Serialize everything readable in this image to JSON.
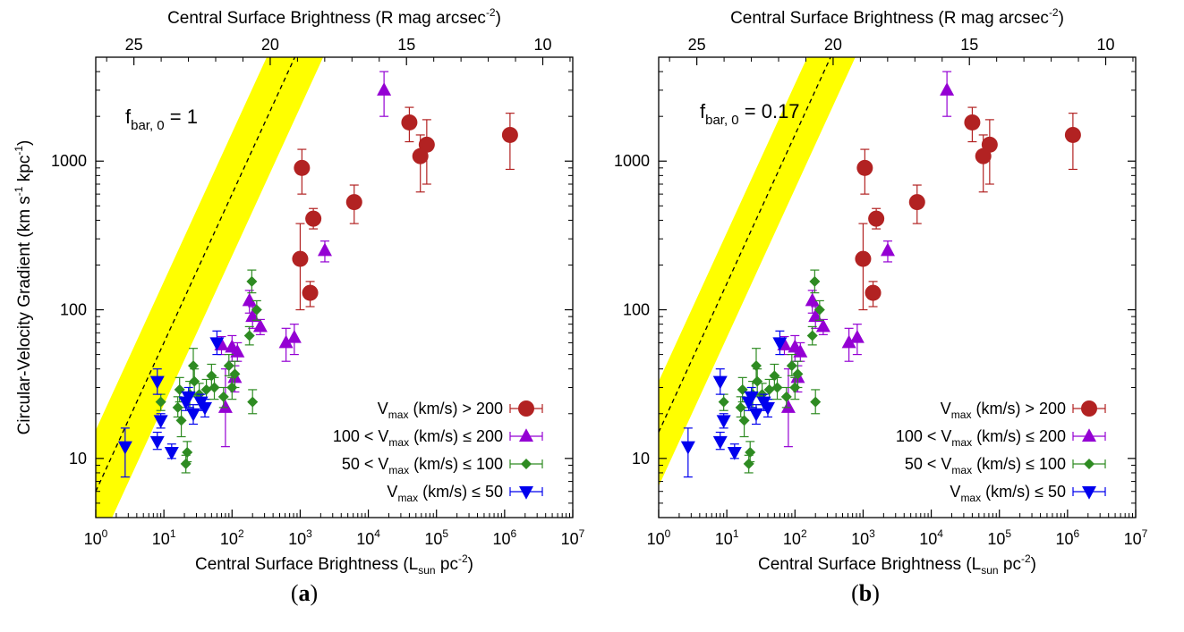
{
  "chart_data": [
    {
      "type": "scatter",
      "panel_label": "a",
      "annotation": {
        "text": "f",
        "sub": "bar, 0",
        "rest": " = 1"
      },
      "xlabel": {
        "pre": "Central Surface Brightness (L",
        "sub": "sun",
        "mid": " pc",
        "sup": "-2",
        "post": ")"
      },
      "x2label": {
        "pre": "Central Surface Brightness (R mag arcsec",
        "sup": "-2",
        "post": ")"
      },
      "ylabel": {
        "pre": "Circular-Velocity Gradient (km s",
        "sup1": "-1",
        "mid": " kpc",
        "sup2": "-1",
        "post": ")"
      },
      "xscale": "log",
      "yscale": "log",
      "xlim": [
        1,
        10000000
      ],
      "ylim": [
        4,
        5000
      ],
      "x_ticks": [
        {
          "base": "10",
          "exp": "0"
        },
        {
          "base": "10",
          "exp": "1"
        },
        {
          "base": "10",
          "exp": "2"
        },
        {
          "base": "10",
          "exp": "3"
        },
        {
          "base": "10",
          "exp": "4"
        },
        {
          "base": "10",
          "exp": "5"
        },
        {
          "base": "10",
          "exp": "6"
        },
        {
          "base": "10",
          "exp": "7"
        }
      ],
      "y_ticks": [
        "10",
        "100",
        "1000"
      ],
      "x2_ticks": [
        "25",
        "20",
        "15",
        "10"
      ],
      "band": {
        "line_at_x1": 6,
        "lower_at_x1": 2.3,
        "upper_at_x1": 15.5,
        "slope": 1.0
      },
      "legend_placement": "bottom-right",
      "series": [
        {
          "name_pre": "V",
          "name_sub": "max",
          "name_post": " (km/s) > 200",
          "marker": "circle",
          "color": "#b22222",
          "points": [
            [
              1060,
              900,
              600,
              1200
            ],
            [
              1560,
              410,
              350,
              480
            ],
            [
              1400,
              130,
              105,
              155
            ],
            [
              1000,
              220,
              100,
              380
            ],
            [
              6200,
              530,
              380,
              690
            ],
            [
              40000,
              1820,
              1350,
              2300
            ],
            [
              58000,
              1080,
              620,
              1500
            ],
            [
              72000,
              1290,
              700,
              1900
            ],
            [
              1200000,
              1500,
              880,
              2100
            ]
          ]
        },
        {
          "name_pre": "100 < V",
          "name_sub": "max",
          "name_post": " (km/s) ≤ 200",
          "marker": "triangle-up",
          "color": "#9400d3",
          "points": [
            [
              17000,
              3000,
              2000,
              4000
            ],
            [
              2300,
              250,
              210,
              290
            ],
            [
              180,
              115,
              95,
              135
            ],
            [
              200,
              90,
              75,
              105
            ],
            [
              260,
              77,
              68,
              86
            ],
            [
              620,
              60,
              45,
              75
            ],
            [
              820,
              65,
              50,
              80
            ],
            [
              70,
              58,
              50,
              66
            ],
            [
              100,
              56,
              45,
              67
            ],
            [
              120,
              52,
              45,
              60
            ],
            [
              80,
              22,
              12,
              40
            ],
            [
              110,
              35,
              28,
              42
            ]
          ]
        },
        {
          "name_pre": "50 < V",
          "name_sub": "max",
          "name_post": " (km/s) ≤ 100",
          "marker": "diamond",
          "color": "#2e8b22",
          "points": [
            [
              195,
              155,
              130,
              185
            ],
            [
              180,
              67,
              58,
              77
            ],
            [
              230,
              100,
              85,
              115
            ],
            [
              27,
              42,
              32,
              55
            ],
            [
              28,
              33,
              26,
              40
            ],
            [
              50,
              36,
              30,
              43
            ],
            [
              90,
              42,
              36,
              50
            ],
            [
              110,
              37,
              30,
              45
            ],
            [
              17,
              29,
              24,
              35
            ],
            [
              24,
              27,
              22,
              33
            ],
            [
              33,
              27,
              23,
              32
            ],
            [
              42,
              29,
              25,
              34
            ],
            [
              55,
              30,
              25,
              35
            ],
            [
              100,
              30,
              25,
              35
            ],
            [
              75,
              26,
              22,
              30
            ],
            [
              9,
              24,
              21,
              27
            ],
            [
              18,
              18,
              14,
              22
            ],
            [
              22,
              11,
              9.5,
              13
            ],
            [
              21,
              9.2,
              8,
              10.5
            ],
            [
              200,
              24,
              20,
              29
            ],
            [
              16,
              22,
              19,
              26
            ]
          ]
        },
        {
          "name_pre": "V",
          "name_sub": "max",
          "name_post": " (km/s) ≤ 50",
          "marker": "triangle-down",
          "color": "#0000ee",
          "points": [
            [
              8,
              33,
              27,
              40
            ],
            [
              9,
              18,
              16,
              20
            ],
            [
              2.7,
              12,
              7.5,
              16
            ],
            [
              8,
              13,
              11.5,
              15
            ],
            [
              13,
              11,
              10,
              12.5
            ],
            [
              21,
              24,
              21,
              28
            ],
            [
              23,
              26,
              22,
              30
            ],
            [
              27,
              20,
              17,
              23
            ],
            [
              60,
              60,
              50,
              72
            ],
            [
              40,
              22,
              19,
              25
            ],
            [
              35,
              24,
              21,
              27
            ]
          ]
        }
      ]
    },
    {
      "type": "scatter",
      "panel_label": "b",
      "annotation": {
        "text": "f",
        "sub": "bar, 0",
        "rest": " = 0.17"
      },
      "xlabel": {
        "pre": "Central Surface Brightness (L",
        "sub": "sun",
        "mid": " pc",
        "sup": "-2",
        "post": ")"
      },
      "x2label": {
        "pre": "Central Surface Brightness (R mag arcsec",
        "sup": "-2",
        "post": ")"
      },
      "ylabel": null,
      "xscale": "log",
      "yscale": "log",
      "xlim": [
        1,
        10000000
      ],
      "ylim": [
        4,
        5000
      ],
      "x_ticks": [
        {
          "base": "10",
          "exp": "0"
        },
        {
          "base": "10",
          "exp": "1"
        },
        {
          "base": "10",
          "exp": "2"
        },
        {
          "base": "10",
          "exp": "3"
        },
        {
          "base": "10",
          "exp": "4"
        },
        {
          "base": "10",
          "exp": "5"
        },
        {
          "base": "10",
          "exp": "6"
        },
        {
          "base": "10",
          "exp": "7"
        }
      ],
      "y_ticks": [
        "10",
        "100",
        "1000"
      ],
      "x2_ticks": [
        "25",
        "20",
        "15",
        "10"
      ],
      "band": {
        "line_at_x1": 15,
        "lower_at_x1": 6.5,
        "upper_at_x1": 33,
        "slope": 1.0
      },
      "legend_placement": "bottom-right",
      "series": [
        {
          "name_pre": "V",
          "name_sub": "max",
          "name_post": " (km/s) > 200",
          "marker": "circle",
          "color": "#b22222",
          "points": [
            [
              1060,
              900,
              600,
              1200
            ],
            [
              1560,
              410,
              350,
              480
            ],
            [
              1400,
              130,
              105,
              155
            ],
            [
              1000,
              220,
              100,
              380
            ],
            [
              6200,
              530,
              380,
              690
            ],
            [
              40000,
              1820,
              1350,
              2300
            ],
            [
              58000,
              1080,
              620,
              1500
            ],
            [
              72000,
              1290,
              700,
              1900
            ],
            [
              1200000,
              1500,
              880,
              2100
            ]
          ]
        },
        {
          "name_pre": "100 < V",
          "name_sub": "max",
          "name_post": " (km/s) ≤ 200",
          "marker": "triangle-up",
          "color": "#9400d3",
          "points": [
            [
              17000,
              3000,
              2000,
              4000
            ],
            [
              2300,
              250,
              210,
              290
            ],
            [
              180,
              115,
              95,
              135
            ],
            [
              200,
              90,
              75,
              105
            ],
            [
              260,
              77,
              68,
              86
            ],
            [
              620,
              60,
              45,
              75
            ],
            [
              820,
              65,
              50,
              80
            ],
            [
              70,
              58,
              50,
              66
            ],
            [
              100,
              56,
              45,
              67
            ],
            [
              120,
              52,
              45,
              60
            ],
            [
              80,
              22,
              12,
              40
            ],
            [
              110,
              35,
              28,
              42
            ]
          ]
        },
        {
          "name_pre": "50 < V",
          "name_sub": "max",
          "name_post": " (km/s) ≤ 100",
          "marker": "diamond",
          "color": "#2e8b22",
          "points": [
            [
              195,
              155,
              130,
              185
            ],
            [
              180,
              67,
              58,
              77
            ],
            [
              230,
              100,
              85,
              115
            ],
            [
              27,
              42,
              32,
              55
            ],
            [
              28,
              33,
              26,
              40
            ],
            [
              50,
              36,
              30,
              43
            ],
            [
              90,
              42,
              36,
              50
            ],
            [
              110,
              37,
              30,
              45
            ],
            [
              17,
              29,
              24,
              35
            ],
            [
              24,
              27,
              22,
              33
            ],
            [
              33,
              27,
              23,
              32
            ],
            [
              42,
              29,
              25,
              34
            ],
            [
              55,
              30,
              25,
              35
            ],
            [
              100,
              30,
              25,
              35
            ],
            [
              75,
              26,
              22,
              30
            ],
            [
              9,
              24,
              21,
              27
            ],
            [
              18,
              18,
              14,
              22
            ],
            [
              22,
              11,
              9.5,
              13
            ],
            [
              21,
              9.2,
              8,
              10.5
            ],
            [
              200,
              24,
              20,
              29
            ],
            [
              16,
              22,
              19,
              26
            ]
          ]
        },
        {
          "name_pre": "V",
          "name_sub": "max",
          "name_post": " (km/s) ≤ 50",
          "marker": "triangle-down",
          "color": "#0000ee",
          "points": [
            [
              8,
              33,
              27,
              40
            ],
            [
              9,
              18,
              16,
              20
            ],
            [
              2.7,
              12,
              7.5,
              16
            ],
            [
              8,
              13,
              11.5,
              15
            ],
            [
              13,
              11,
              10,
              12.5
            ],
            [
              21,
              24,
              21,
              28
            ],
            [
              23,
              26,
              22,
              30
            ],
            [
              27,
              20,
              17,
              23
            ],
            [
              60,
              60,
              50,
              72
            ],
            [
              40,
              22,
              19,
              25
            ],
            [
              35,
              24,
              21,
              27
            ]
          ]
        }
      ]
    }
  ],
  "colors": {
    "band": "#ffff00",
    "axis": "#000000",
    "fit_line": "#000000"
  }
}
